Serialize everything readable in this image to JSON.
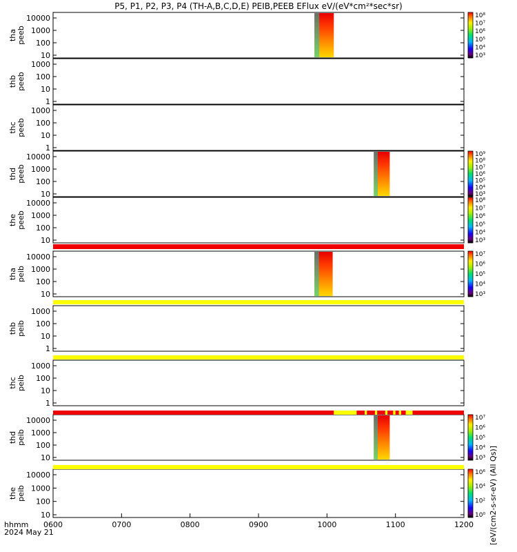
{
  "chart_data": {
    "type": "heatmap",
    "title": "P5, P1, P2, P3, P4 (TH-A,B,C,D,E) PEIB,PEEB EFlux eV/(eV*cm²*sec*sr)",
    "x_axis": {
      "ticks": [
        "0600",
        "0700",
        "0800",
        "0900",
        "1000",
        "1100",
        "1200"
      ],
      "label": "hhmm",
      "date": "2024 May 21",
      "range": [
        "0600",
        "1200"
      ]
    },
    "colorbar_label": "[eV/(cm2-s-sr-eV) (All Qs)]",
    "panels": [
      {
        "name": "thaPeeb",
        "label1": "tha",
        "label2": "peeb",
        "yticks": [
          "10000",
          "1000",
          "100",
          "10"
        ],
        "data_intervals": [
          [
            "0949",
            "1006"
          ]
        ],
        "colorbar": [
          "10³",
          "10⁴",
          "10⁵",
          "10⁶",
          "10⁷",
          "10⁸"
        ]
      },
      {
        "name": "thbPeeb",
        "label1": "thb",
        "label2": "peeb",
        "yticks": [
          "1000",
          "100",
          "10",
          "1"
        ],
        "data_intervals": [],
        "colorbar": []
      },
      {
        "name": "thcPeeb",
        "label1": "thc",
        "label2": "peeb",
        "yticks": [
          "1000",
          "100",
          "10",
          "1"
        ],
        "data_intervals": [],
        "colorbar": []
      },
      {
        "name": "thdPeeb",
        "label1": "thd",
        "label2": "peeb",
        "yticks": [
          "10000",
          "1000",
          "100",
          "10"
        ],
        "data_intervals": [
          [
            "1041",
            "1055"
          ]
        ],
        "colorbar": [
          "10³",
          "10⁴",
          "10⁵",
          "10⁶",
          "10⁷",
          "10⁸",
          "10⁹"
        ]
      },
      {
        "name": "thePeeb",
        "label1": "the",
        "label2": "peeb",
        "yticks": [
          "10000",
          "1000",
          "100",
          "10"
        ],
        "data_intervals": [],
        "colorbar": [
          "10³",
          "10⁴",
          "10⁵",
          "10⁶",
          "10⁷",
          "10⁸"
        ]
      },
      {
        "name": "thaPeib",
        "label1": "tha",
        "label2": "peib",
        "yticks": [
          "10000",
          "1000",
          "100",
          "10"
        ],
        "data_intervals": [
          [
            "0949",
            "1005"
          ]
        ],
        "colorbar": [
          "10³",
          "10⁴",
          "10⁵",
          "10⁶",
          "10⁷"
        ]
      },
      {
        "name": "thbPeib",
        "label1": "thb",
        "label2": "peib",
        "yticks": [
          "1000",
          "100",
          "10",
          "1"
        ],
        "data_intervals": [],
        "colorbar": []
      },
      {
        "name": "thcPeib",
        "label1": "thc",
        "label2": "peib",
        "yticks": [
          "1000",
          "100",
          "10",
          "1"
        ],
        "data_intervals": [],
        "colorbar": []
      },
      {
        "name": "thdPeib",
        "label1": "thd",
        "label2": "peib",
        "yticks": [
          "10000",
          "1000",
          "100",
          "10"
        ],
        "data_intervals": [
          [
            "1041",
            "1055"
          ]
        ],
        "colorbar": [
          "10³",
          "10⁴",
          "10⁵",
          "10⁶",
          "10⁷"
        ]
      },
      {
        "name": "thePeib",
        "label1": "the",
        "label2": "peib",
        "yticks": [
          "10000",
          "1000",
          "100",
          "10"
        ],
        "data_intervals": [],
        "colorbar": [
          "10⁰",
          "10²",
          "10⁴",
          "10⁶"
        ]
      }
    ],
    "status_bars": [
      {
        "color": "red"
      },
      {
        "color": "yellow"
      },
      {
        "color": "yellow"
      },
      {
        "color": "red",
        "yellow_segments": [
          [
            "1006",
            "1026"
          ],
          [
            "1033",
            "1035"
          ],
          [
            "1042",
            "1044"
          ],
          [
            "1051",
            "1053"
          ],
          [
            "1058",
            "1060"
          ],
          [
            "1063",
            "1065"
          ],
          [
            "1069",
            "1075"
          ]
        ]
      },
      {
        "color": "yellow"
      }
    ]
  }
}
